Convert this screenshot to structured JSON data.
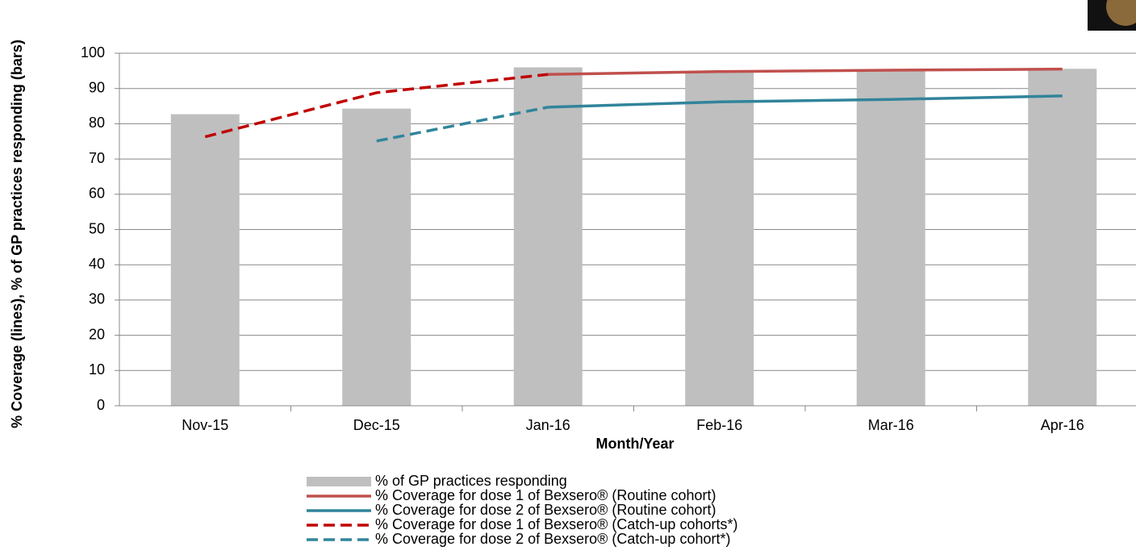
{
  "chart_data": {
    "type": "bar-line",
    "y_label": "% Coverage (lines), % of GP practices responding (bars)",
    "x_label": "Month/Year",
    "categories": [
      "Nov-15",
      "Dec-15",
      "Jan-16",
      "Feb-16",
      "Mar-16",
      "Apr-16"
    ],
    "ylim": [
      0,
      100
    ],
    "yticks": [
      0,
      10,
      20,
      30,
      40,
      50,
      60,
      70,
      80,
      90,
      100
    ],
    "grid": true,
    "series": [
      {
        "name": "% of GP practices responding",
        "kind": "bar",
        "color": "#bfbfbf",
        "values": [
          82.7,
          84.3,
          96,
          94.8,
          95.3,
          95.6
        ]
      },
      {
        "name": "% Coverage for dose 1 of Bexsero® (Routine cohort)",
        "kind": "line",
        "color": "#c0504d",
        "values": [
          null,
          null,
          94,
          94.8,
          95.2,
          95.5
        ]
      },
      {
        "name": "% Coverage for dose 2 of Bexsero® (Routine cohort)",
        "kind": "line",
        "color": "#31849b",
        "values": [
          null,
          null,
          84.7,
          86.2,
          86.9,
          87.9
        ]
      },
      {
        "name": "% Coverage for dose 1 of Bexsero® (Catch-up cohorts*)",
        "kind": "dashed",
        "color": "#c00000",
        "values": [
          76.3,
          88.8,
          94,
          null,
          null,
          null
        ]
      },
      {
        "name": "% Coverage for dose 2 of Bexsero® (Catch-up cohort*)",
        "kind": "dashed",
        "color": "#31859c",
        "values": [
          null,
          75.1,
          84.7,
          null,
          null,
          null
        ]
      }
    ]
  }
}
